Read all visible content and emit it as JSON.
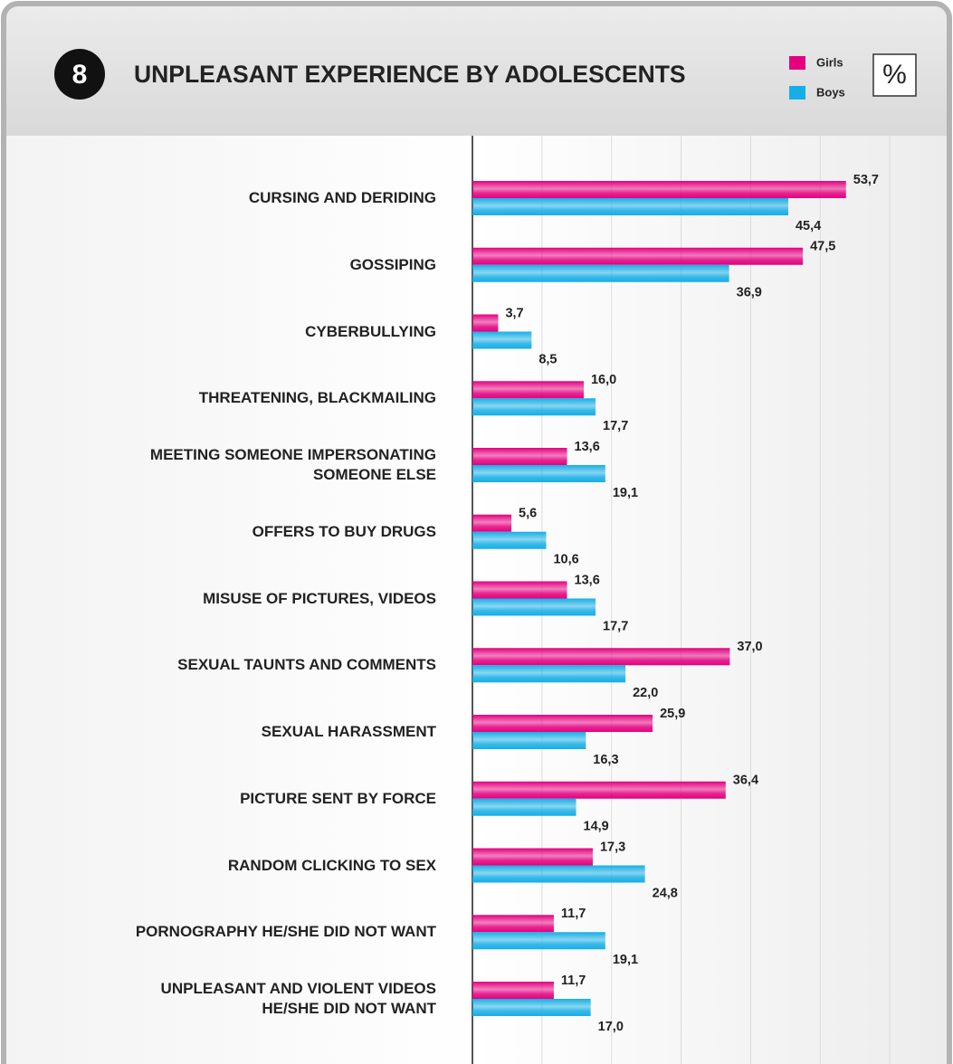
{
  "chart_data": {
    "type": "hbar",
    "chart_number": "8",
    "title": "UNPLEASANT EXPERIENCE BY ADOLESCENTS",
    "unit": "%",
    "categories": [
      "CURSING AND DERIDING",
      "GOSSIPING",
      "CYBERBULLYING",
      "THREATENING, BLACKMAILING",
      "MEETING SOMEONE IMPERSONATING\nSOMEONE ELSE",
      "OFFERS TO BUY DRUGS",
      "MISUSE OF PICTURES, VIDEOS",
      "SEXUAL TAUNTS AND COMMENTS",
      "SEXUAL HARASSMENT",
      "PICTURE SENT BY FORCE",
      "RANDOM CLICKING TO SEX",
      "PORNOGRAPHY HE/SHE DID NOT WANT",
      "UNPLEASANT AND VIOLENT VIDEOS\nHE/SHE DID NOT WANT"
    ],
    "series": [
      {
        "name": "Girls",
        "color": "#e4007f",
        "values": [
          53.7,
          47.5,
          3.7,
          16.0,
          13.6,
          5.6,
          13.6,
          37.0,
          25.9,
          36.4,
          17.3,
          11.7,
          11.7
        ],
        "value_labels": [
          "53,7",
          "47,5",
          "3,7",
          "16,0",
          "13,6",
          "5,6",
          "13,6",
          "37,0",
          "25,9",
          "36,4",
          "17,3",
          "11,7",
          "11,7"
        ]
      },
      {
        "name": "Boys",
        "color": "#16aee6",
        "values": [
          45.4,
          36.9,
          8.5,
          17.7,
          19.1,
          10.6,
          17.7,
          22.0,
          16.3,
          14.9,
          24.8,
          19.1,
          17.0
        ],
        "value_labels": [
          "45,4",
          "36,9",
          "8,5",
          "17,7",
          "19,1",
          "10,6",
          "17,7",
          "22,0",
          "16,3",
          "14,9",
          "24,8",
          "19,1",
          "17,0"
        ]
      }
    ],
    "xlim": [
      0,
      67
    ],
    "xticks": [
      0,
      10,
      20,
      30,
      40,
      50,
      60
    ],
    "grid": true
  }
}
